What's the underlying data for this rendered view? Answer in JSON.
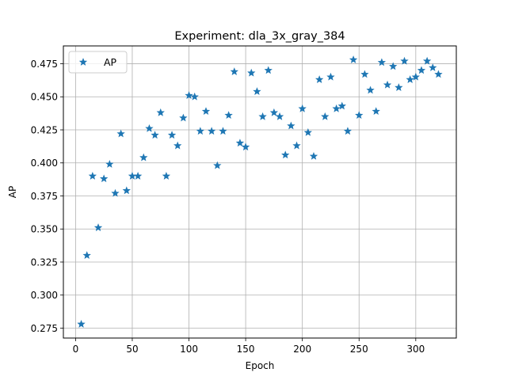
{
  "chart_data": {
    "type": "scatter",
    "title": "Experiment: dla_3x_gray_384",
    "xlabel": "Epoch",
    "ylabel": "AP",
    "xlim": [
      -10.75,
      335.75
    ],
    "ylim": [
      0.2675,
      0.4885
    ],
    "xticks": [
      0,
      50,
      100,
      150,
      200,
      250,
      300
    ],
    "yticks": [
      0.275,
      0.3,
      0.325,
      0.35,
      0.375,
      0.4,
      0.425,
      0.45,
      0.475
    ],
    "ytick_labels": [
      "0.275",
      "0.300",
      "0.325",
      "0.350",
      "0.375",
      "0.400",
      "0.425",
      "0.450",
      "0.475"
    ],
    "grid": true,
    "legend": {
      "position": "upper-left",
      "entries": [
        "AP"
      ]
    },
    "marker": "star",
    "series": [
      {
        "name": "AP",
        "color": "#1f77b4",
        "x": [
          5,
          10,
          15,
          20,
          25,
          30,
          35,
          40,
          45,
          50,
          55,
          60,
          65,
          70,
          75,
          80,
          85,
          90,
          95,
          100,
          105,
          110,
          115,
          120,
          125,
          130,
          135,
          140,
          145,
          150,
          155,
          160,
          165,
          170,
          175,
          180,
          185,
          190,
          195,
          200,
          205,
          210,
          215,
          220,
          225,
          230,
          235,
          240,
          245,
          250,
          255,
          260,
          265,
          270,
          275,
          280,
          285,
          290,
          295,
          300,
          305,
          310,
          315,
          320
        ],
        "y": [
          0.278,
          0.33,
          0.39,
          0.351,
          0.388,
          0.399,
          0.377,
          0.422,
          0.379,
          0.39,
          0.39,
          0.404,
          0.426,
          0.421,
          0.438,
          0.39,
          0.421,
          0.413,
          0.434,
          0.451,
          0.45,
          0.424,
          0.439,
          0.424,
          0.398,
          0.424,
          0.436,
          0.469,
          0.415,
          0.412,
          0.468,
          0.454,
          0.435,
          0.47,
          0.438,
          0.435,
          0.406,
          0.428,
          0.413,
          0.441,
          0.423,
          0.405,
          0.463,
          0.435,
          0.465,
          0.441,
          0.443,
          0.424,
          0.478,
          0.436,
          0.467,
          0.455,
          0.439,
          0.476,
          0.459,
          0.473,
          0.457,
          0.477,
          0.463,
          0.465,
          0.47,
          0.477,
          0.472,
          0.467
        ]
      }
    ]
  }
}
